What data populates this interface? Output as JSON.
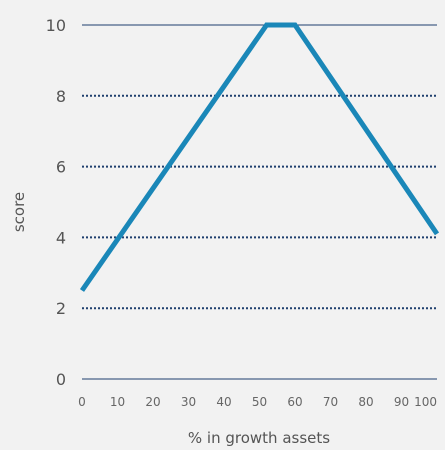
{
  "chart_data": {
    "type": "line",
    "title": "",
    "xlabel": "% in growth assets",
    "ylabel": "score",
    "x_ticks": [
      0,
      10,
      20,
      30,
      40,
      50,
      60,
      70,
      80,
      90,
      100
    ],
    "y_ticks": [
      0,
      2,
      4,
      6,
      8,
      10
    ],
    "xlim": [
      0,
      100
    ],
    "ylim": [
      0,
      10
    ],
    "grid": "dotted-horizontal",
    "series": [
      {
        "x": [
          0,
          52,
          60,
          100
        ],
        "y": [
          2.5,
          10,
          10,
          4.1
        ]
      }
    ]
  },
  "colors": {
    "background": "#f2f2f2",
    "line": "#1a87b8",
    "grid": "#1f3f6e",
    "axis": "#1f3f6e"
  }
}
